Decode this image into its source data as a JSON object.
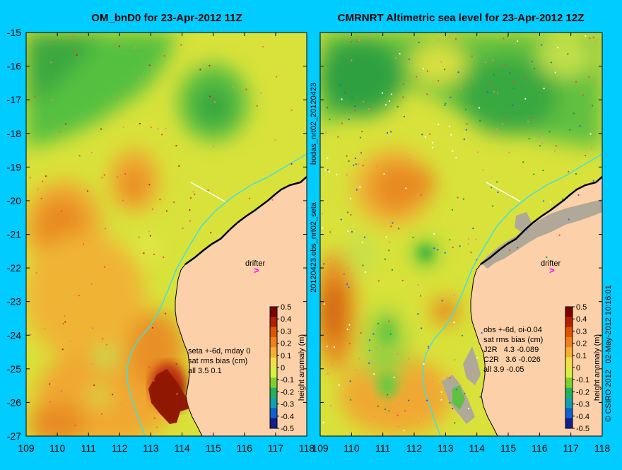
{
  "panels": [
    {
      "title": "OM_bnD0 for 23-Apr-2012 11Z",
      "annotation_lines": [
        "seta +-6d, mday 0",
        "sat rms bias (cm)",
        "all 3.5 0.1"
      ]
    },
    {
      "title": "CMRNRT Altimetric sea level  for 23-Apr-2012 12Z",
      "annotation_lines": [
        "obs +-6d, oi-0.04",
        "sat rms bias (cm)",
        "J2R   4.3 -0.089",
        "C2R   3.6 -0.026",
        "all 3.9 -0.05"
      ]
    }
  ],
  "side_labels": {
    "top": "bodas_nrt02_20120423",
    "bottom": "20120423.obs_nrt02_seta",
    "credit": "© CSIRO 2012   02-May-2012 10:16:01"
  },
  "drifter_label": "drifter",
  "y_ticks": [
    "-15",
    "-16",
    "-17",
    "-18",
    "-19",
    "-20",
    "-21",
    "-22",
    "-23",
    "-24",
    "-25",
    "-26",
    "-27"
  ],
  "x_ticks": [
    "109",
    "110",
    "111",
    "112",
    "113",
    "114",
    "115",
    "116",
    "117",
    "118"
  ],
  "colorbar": {
    "label": "height anomaly (m)",
    "ticks": [
      "0.5",
      "0.4",
      "0.3",
      "0.2",
      "0.1",
      "0",
      "-0.1",
      "-0.2",
      "-0.3",
      "-0.4",
      "-0.5"
    ],
    "colors": [
      "#7f0000",
      "#b22000",
      "#dd5500",
      "#f08020",
      "#f5b030",
      "#f2e04a",
      "#d8f040",
      "#7ed030",
      "#20b060",
      "#10a0b0",
      "#1060d0",
      "#102090"
    ]
  },
  "colors": {
    "background": "#00ccff",
    "land": "#fcd0a8",
    "coast_cyan": "#40e0e0",
    "drifter_marker": "#ff00ff"
  },
  "map": {
    "lon_range": [
      109,
      118
    ],
    "lat_range": [
      -27,
      -15
    ]
  }
}
